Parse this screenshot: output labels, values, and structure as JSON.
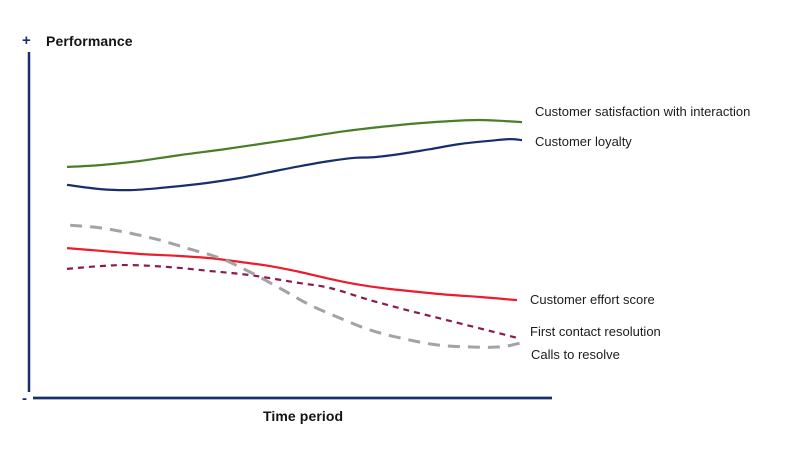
{
  "axes": {
    "y_label": "Performance",
    "y_plus": "+",
    "y_minus": "-",
    "x_label": "Time period",
    "axis_color": "#17306d",
    "text_color": "#141414"
  },
  "chart_data": {
    "type": "line",
    "title": "",
    "xlabel": "Time period",
    "ylabel": "Performance",
    "grid": false,
    "legend_position": "labels-at-line-ends-right",
    "x_axis": {
      "range": [
        0,
        100
      ],
      "tick_labels": "none",
      "unit": "relative time"
    },
    "y_axis": {
      "range": [
        0,
        100
      ],
      "tick_labels": "none",
      "endpoint_markers": [
        "-",
        "+"
      ],
      "unit": "relative performance"
    },
    "series": [
      {
        "name": "Customer satisfaction with interaction",
        "color": "#497d26",
        "style": "solid",
        "width": 2.2,
        "dash": null,
        "points": [
          [
            0,
            66.9
          ],
          [
            7.3,
            67.4
          ],
          [
            16,
            68.6
          ],
          [
            24.8,
            70.3
          ],
          [
            33.6,
            71.8
          ],
          [
            42.4,
            73.5
          ],
          [
            51.2,
            75.2
          ],
          [
            60,
            77
          ],
          [
            68.8,
            78.4
          ],
          [
            77.6,
            79.5
          ],
          [
            84.2,
            80.1
          ],
          [
            90.8,
            80.4
          ],
          [
            96.3,
            80.1
          ],
          [
            100,
            79.8
          ]
        ]
      },
      {
        "name": "Customer loyalty",
        "color": "#17306d",
        "style": "solid",
        "width": 2.2,
        "dash": null,
        "points": [
          [
            0,
            61.7
          ],
          [
            7.3,
            60.5
          ],
          [
            13.8,
            60.2
          ],
          [
            20.4,
            60.8
          ],
          [
            29.2,
            62
          ],
          [
            38,
            63.7
          ],
          [
            44.6,
            65.4
          ],
          [
            51.2,
            67.1
          ],
          [
            57.8,
            68.6
          ],
          [
            63.3,
            69.5
          ],
          [
            67.7,
            69.7
          ],
          [
            73.2,
            70.6
          ],
          [
            79.8,
            72
          ],
          [
            86.4,
            73.5
          ],
          [
            93,
            74.4
          ],
          [
            97.4,
            74.9
          ],
          [
            100,
            74.6
          ]
        ]
      },
      {
        "name": "Customer effort score",
        "color": "#ec1c2d",
        "style": "solid",
        "width": 2.2,
        "dash": null,
        "points": [
          [
            0,
            43.5
          ],
          [
            7.3,
            42.7
          ],
          [
            16,
            41.8
          ],
          [
            24.8,
            41.2
          ],
          [
            31.4,
            40.6
          ],
          [
            38,
            39.5
          ],
          [
            44.6,
            38.3
          ],
          [
            51.2,
            36.6
          ],
          [
            57.8,
            34.6
          ],
          [
            64.4,
            32.9
          ],
          [
            71,
            31.7
          ],
          [
            77.6,
            30.8
          ],
          [
            84.2,
            30
          ],
          [
            90.8,
            29.4
          ],
          [
            96.3,
            28.8
          ],
          [
            98.9,
            28.5
          ]
        ]
      },
      {
        "name": "First contact resolution",
        "color": "#8b1a4e",
        "style": "dashed",
        "width": 2.2,
        "dash": "6 5",
        "points": [
          [
            0,
            37.5
          ],
          [
            7.3,
            38.3
          ],
          [
            13.8,
            38.6
          ],
          [
            22.6,
            38
          ],
          [
            31.4,
            36.9
          ],
          [
            40.2,
            35.7
          ],
          [
            51.2,
            33.4
          ],
          [
            57.8,
            32
          ],
          [
            66.6,
            28.5
          ],
          [
            75.4,
            25.4
          ],
          [
            84.2,
            22.5
          ],
          [
            93,
            19.6
          ],
          [
            98.9,
            17.6
          ]
        ]
      },
      {
        "name": "Calls to resolve",
        "color": "#a3a3a3",
        "style": "dashed",
        "width": 3,
        "dash": "12 8",
        "points": [
          [
            0.7,
            50.1
          ],
          [
            7.3,
            49.3
          ],
          [
            13.8,
            47.8
          ],
          [
            20.4,
            45.8
          ],
          [
            27,
            43.2
          ],
          [
            33.6,
            40.6
          ],
          [
            40.2,
            36.6
          ],
          [
            47.5,
            31.4
          ],
          [
            53.4,
            27.1
          ],
          [
            60,
            23.3
          ],
          [
            66.6,
            19.9
          ],
          [
            73.2,
            17.6
          ],
          [
            81.3,
            15.6
          ],
          [
            88.6,
            15
          ],
          [
            95.2,
            15
          ],
          [
            99.6,
            16.1
          ]
        ]
      }
    ]
  }
}
